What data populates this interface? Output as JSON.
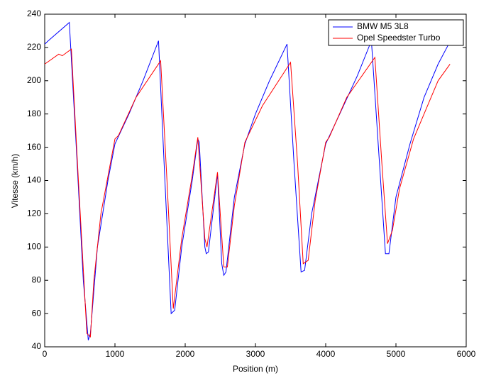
{
  "chart_data": {
    "type": "line",
    "xlabel": "Position (m)",
    "ylabel": "Vitesse (km/h)",
    "xlim": [
      0,
      6000
    ],
    "xticks": [
      0,
      1000,
      2000,
      3000,
      4000,
      5000,
      6000
    ],
    "ylim": [
      40,
      240
    ],
    "yticks": [
      40,
      60,
      80,
      100,
      120,
      140,
      160,
      180,
      200,
      220,
      240
    ],
    "grid": false,
    "legend": "top-right",
    "series": [
      {
        "name": "BMW M5 3L8",
        "color": "#0000ff",
        "x": [
          0,
          50,
          350,
          450,
          550,
          620,
          650,
          750,
          900,
          1000,
          1200,
          1400,
          1620,
          1700,
          1800,
          1850,
          1950,
          2100,
          2180,
          2200,
          2280,
          2300,
          2330,
          2460,
          2520,
          2550,
          2580,
          2700,
          2850,
          3000,
          3200,
          3450,
          3550,
          3650,
          3700,
          3800,
          4000,
          4200,
          4450,
          4650,
          4750,
          4850,
          4900,
          5000,
          5200,
          5400,
          5600,
          5750
        ],
        "values": [
          222,
          224,
          235,
          160,
          80,
          44,
          48,
          100,
          140,
          162,
          180,
          200,
          224,
          150,
          60,
          62,
          100,
          140,
          165,
          163,
          100,
          96,
          97,
          144,
          90,
          83,
          85,
          130,
          162,
          180,
          200,
          222,
          150,
          85,
          86,
          120,
          162,
          180,
          203,
          224,
          160,
          96,
          96,
          130,
          162,
          190,
          210,
          222
        ]
      },
      {
        "name": "Opel Speedster Turbo",
        "color": "#ff0000",
        "x": [
          0,
          200,
          250,
          380,
          480,
          600,
          650,
          700,
          800,
          1000,
          1050,
          1300,
          1650,
          1740,
          1830,
          1950,
          2100,
          2180,
          2280,
          2310,
          2460,
          2550,
          2600,
          2700,
          2850,
          3100,
          3500,
          3600,
          3680,
          3750,
          3850,
          4000,
          4050,
          4300,
          4700,
          4800,
          4880,
          4950,
          5050,
          5250,
          5400,
          5600,
          5770
        ],
        "values": [
          210,
          216,
          215,
          219,
          140,
          48,
          46,
          80,
          120,
          165,
          167,
          190,
          212,
          140,
          63,
          105,
          143,
          166,
          105,
          100,
          145,
          88,
          88,
          125,
          163,
          185,
          211,
          150,
          90,
          92,
          128,
          163,
          166,
          190,
          214,
          150,
          102,
          110,
          135,
          165,
          180,
          200,
          210
        ]
      }
    ]
  }
}
